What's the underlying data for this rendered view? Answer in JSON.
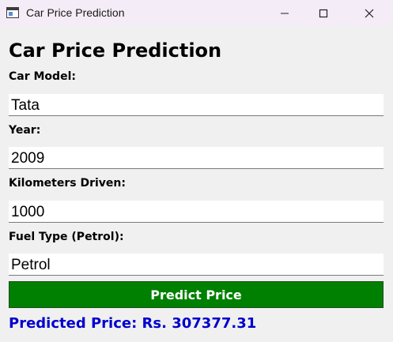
{
  "window": {
    "title": "Car Price Prediction",
    "icon": "app-window-icon"
  },
  "form": {
    "heading": "Car Price Prediction",
    "fields": [
      {
        "label": "Car Model:",
        "value": "Tata"
      },
      {
        "label": "Year:",
        "value": "2009"
      },
      {
        "label": "Kilometers Driven:",
        "value": "1000"
      },
      {
        "label": "Fuel Type (Petrol):",
        "value": "Petrol"
      }
    ],
    "predict_button_label": "Predict Price",
    "result_text": "Predicted Price: Rs. 307377.31"
  },
  "colors": {
    "button_bg": "#008000",
    "result_text": "#0000cd",
    "titlebar_bg": "#f4ecf6"
  }
}
